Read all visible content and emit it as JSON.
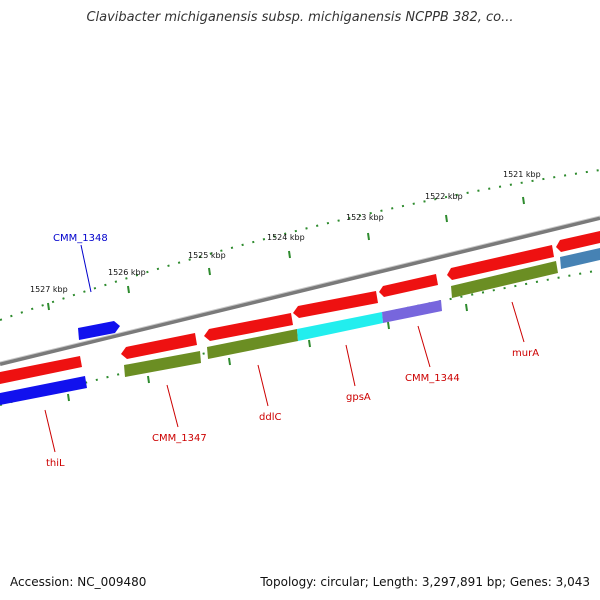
{
  "title": "Clavibacter michiganensis subsp. michiganensis NCPPB 382, co...",
  "footer": {
    "accession": "Accession: NC_009480",
    "summary": "Topology: circular; Length: 3,297,891 bp; Genes: 3,043"
  },
  "colors": {
    "backbone": "#8a8a8a",
    "tick_dots": "#2e8b2e",
    "gene_red": "#ee1111",
    "gene_blue": "#1111ee",
    "gene_olive": "#6b8e23",
    "gene_cyan": "#22eeee",
    "gene_purple": "#7766dd",
    "gene_steel": "#4682b4",
    "label_red": "#cc0000",
    "label_blue": "#0000cc"
  },
  "scale_labels": [
    "1527 kbp",
    "1526 kbp",
    "1525 kbp",
    "1524 kbp",
    "1523 kbp",
    "1522 kbp",
    "1521 kbp"
  ],
  "gene_labels": [
    {
      "text": "CMM_1348",
      "color": "blue"
    },
    {
      "text": "thiL",
      "color": "red"
    },
    {
      "text": "CMM_1347",
      "color": "red"
    },
    {
      "text": "ddlC",
      "color": "red"
    },
    {
      "text": "gpsA",
      "color": "red"
    },
    {
      "text": "CMM_1344",
      "color": "red"
    },
    {
      "text": "murA",
      "color": "red"
    }
  ]
}
